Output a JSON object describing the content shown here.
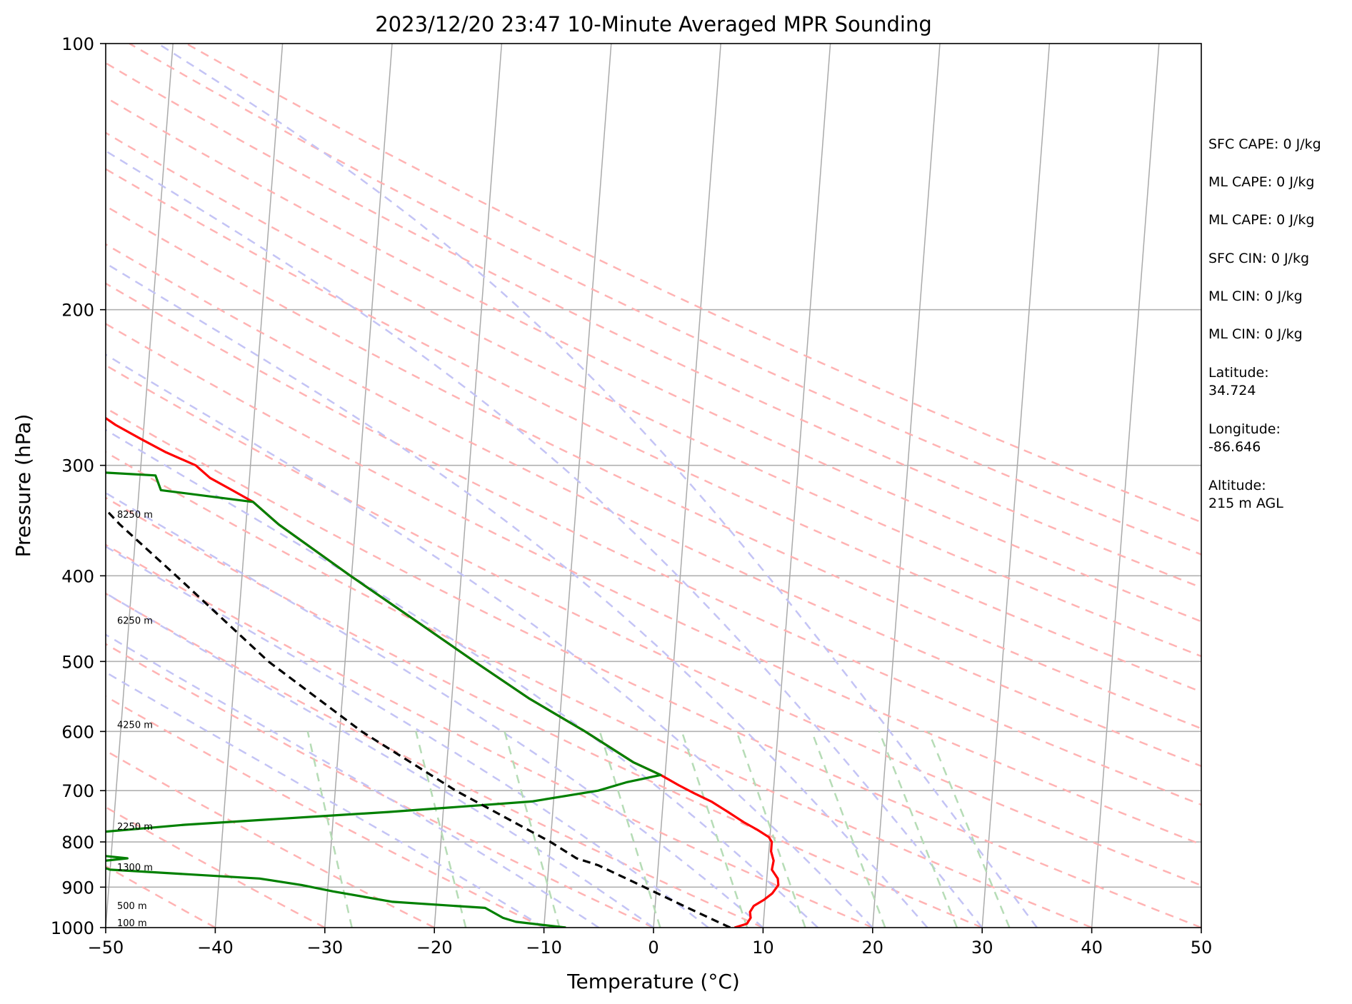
{
  "chart_data": {
    "type": "line",
    "title": "2023/12/20 23:47 10-Minute Averaged MPR Sounding",
    "xlabel": "Temperature (°C)",
    "ylabel": "Pressure (hPa)",
    "xlim": [
      -50,
      50
    ],
    "ylim": [
      1000,
      100
    ],
    "y_scale": "log",
    "x_ticks": [
      -50,
      -40,
      -30,
      -20,
      -10,
      0,
      10,
      20,
      30,
      40,
      50
    ],
    "x_tick_labels": [
      "−50",
      "−40",
      "−30",
      "−20",
      "−10",
      "0",
      "10",
      "20",
      "30",
      "40",
      "50"
    ],
    "y_ticks": [
      100,
      200,
      300,
      400,
      500,
      600,
      700,
      800,
      900,
      1000
    ],
    "y_tick_labels": [
      "100",
      "200",
      "300",
      "400",
      "500",
      "600",
      "700",
      "800",
      "900",
      "1000"
    ],
    "grid": true,
    "skew": "skew-T log-p",
    "height_labels": [
      {
        "p": 1000,
        "label": "100 m"
      },
      {
        "p": 956,
        "label": "500 m"
      },
      {
        "p": 865,
        "label": "1300 m"
      },
      {
        "p": 778,
        "label": "2250 m"
      },
      {
        "p": 597,
        "label": "4250 m"
      },
      {
        "p": 455,
        "label": "6250 m"
      },
      {
        "p": 345,
        "label": "8250 m"
      }
    ],
    "series": [
      {
        "color": "#ff0000",
        "points": [
          [
            1000,
            7.4
          ],
          [
            990,
            8.5
          ],
          [
            975,
            8.8
          ],
          [
            960,
            8.7
          ],
          [
            945,
            9.0
          ],
          [
            930,
            9.9
          ],
          [
            915,
            10.6
          ],
          [
            895,
            11.1
          ],
          [
            880,
            11.0
          ],
          [
            860,
            10.4
          ],
          [
            840,
            10.5
          ],
          [
            820,
            10.2
          ],
          [
            800,
            10.2
          ],
          [
            790,
            9.9
          ],
          [
            775,
            8.8
          ],
          [
            760,
            7.5
          ],
          [
            740,
            6.0
          ],
          [
            720,
            4.4
          ],
          [
            705,
            2.8
          ],
          [
            690,
            1.3
          ],
          [
            672,
            -0.4
          ],
          [
            650,
            -3.0
          ],
          [
            600,
            -7.6
          ],
          [
            550,
            -13.0
          ],
          [
            500,
            -18.2
          ],
          [
            450,
            -23.8
          ],
          [
            400,
            -30.1
          ],
          [
            350,
            -37.0
          ],
          [
            330,
            -39.5
          ],
          [
            320,
            -41.5
          ],
          [
            310,
            -43.6
          ],
          [
            300,
            -45.0
          ],
          [
            290,
            -47.8
          ],
          [
            280,
            -50.2
          ],
          [
            270,
            -52.6
          ],
          [
            262,
            -54.2
          ]
        ]
      },
      {
        "color": "#008000",
        "points": [
          [
            1000,
            -8.0
          ],
          [
            985,
            -12.6
          ],
          [
            975,
            -13.8
          ],
          [
            960,
            -14.8
          ],
          [
            950,
            -15.5
          ],
          [
            935,
            -24.0
          ],
          [
            910,
            -29.5
          ],
          [
            895,
            -32.4
          ],
          [
            880,
            -36.3
          ],
          [
            860,
            -50.0
          ],
          [
            852,
            -51.0
          ],
          [
            842,
            -51.2
          ],
          [
            835,
            -48.5
          ],
          [
            825,
            -52.5
          ],
          [
            810,
            -54.0
          ],
          [
            795,
            -53.6
          ],
          [
            785,
            -53.8
          ],
          [
            765,
            -43.5
          ],
          [
            740,
            -25.0
          ],
          [
            720,
            -12.0
          ],
          [
            700,
            -6.0
          ],
          [
            685,
            -3.5
          ],
          [
            672,
            -0.4
          ],
          [
            650,
            -3.0
          ],
          [
            600,
            -7.6
          ],
          [
            550,
            -13.0
          ],
          [
            500,
            -18.2
          ],
          [
            450,
            -23.8
          ],
          [
            400,
            -30.1
          ],
          [
            350,
            -37.0
          ],
          [
            330,
            -39.5
          ],
          [
            320,
            -48.0
          ],
          [
            308,
            -48.6
          ],
          [
            302,
            -61.0
          ],
          [
            295,
            -80.0
          ],
          [
            288,
            -96.0
          ]
        ]
      },
      {
        "color": "#000000",
        "dashed": true,
        "points": [
          [
            1000,
            7.0
          ],
          [
            950,
            3.0
          ],
          [
            900,
            -1.1
          ],
          [
            850,
            -5.5
          ],
          [
            835,
            -7.5
          ],
          [
            800,
            -10.0
          ],
          [
            700,
            -19.0
          ],
          [
            600,
            -28.0
          ],
          [
            500,
            -37.0
          ],
          [
            400,
            -46.0
          ],
          [
            350,
            -51.5
          ],
          [
            300,
            -57.0
          ],
          [
            265,
            -61.0
          ]
        ]
      }
    ]
  },
  "sidebar": {
    "sfc_cape": "SFC CAPE: 0 J/kg",
    "ml_cape_1": "ML CAPE: 0 J/kg",
    "ml_cape_2": "ML CAPE: 0 J/kg",
    "sfc_cin": "SFC CIN: 0 J/kg",
    "ml_cin_1": "ML CIN: 0 J/kg",
    "ml_cin_2": "ML CIN: 0 J/kg",
    "latitude_label": "Latitude:",
    "latitude_value": "34.724",
    "longitude_label": "Longitude:",
    "longitude_value": "-86.646",
    "altitude_label": "Altitude:",
    "altitude_value": "215 m AGL"
  }
}
